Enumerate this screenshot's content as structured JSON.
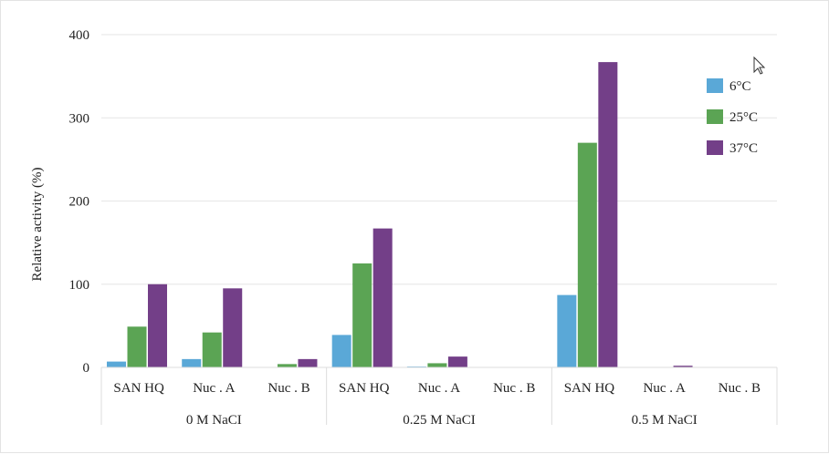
{
  "chart_data": {
    "type": "bar",
    "ylabel": "Relative activity (%)",
    "xlabel": "",
    "ylim": [
      0,
      400
    ],
    "yticks": [
      0,
      100,
      200,
      300,
      400
    ],
    "grid": true,
    "legend_position": "top-right",
    "groups": [
      {
        "label": "0 M NaCI",
        "categories": [
          "SAN HQ",
          "Nuc . A",
          "Nuc . B"
        ]
      },
      {
        "label": "0.25 M NaCI",
        "categories": [
          "SAN HQ",
          "Nuc . A",
          "Nuc . B"
        ]
      },
      {
        "label": "0.5 M NaCI",
        "categories": [
          "SAN HQ",
          "Nuc . A",
          "Nuc . B"
        ]
      }
    ],
    "series": [
      {
        "name": "6°C",
        "color": "#5aa8d7",
        "values": [
          7,
          10,
          0,
          39,
          1,
          0,
          87,
          0,
          0
        ]
      },
      {
        "name": "25°C",
        "color": "#5ba454",
        "values": [
          49,
          42,
          4,
          125,
          5,
          0,
          270,
          0,
          0
        ]
      },
      {
        "name": "37°C",
        "color": "#733f88",
        "values": [
          100,
          95,
          10,
          167,
          13,
          0,
          367,
          2,
          0
        ]
      }
    ]
  }
}
